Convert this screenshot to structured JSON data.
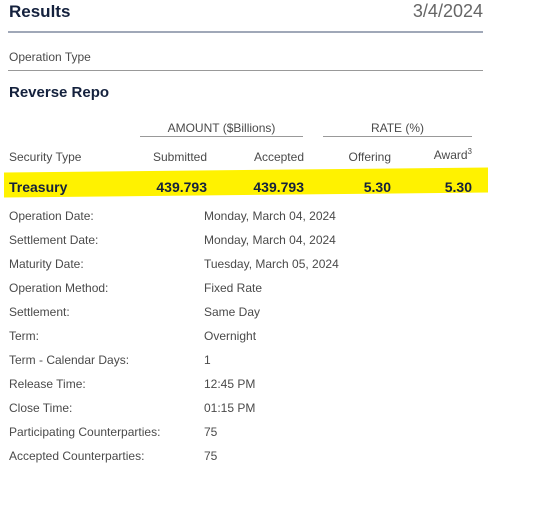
{
  "header": {
    "title": "Results",
    "date": "3/4/2024"
  },
  "operation_type_label": "Operation Type",
  "section_title": "Reverse Repo",
  "table": {
    "groups": [
      "AMOUNT ($Billions)",
      "RATE (%)"
    ],
    "columns": [
      {
        "label": "Security Type"
      },
      {
        "label": "Submitted"
      },
      {
        "label": "Accepted"
      },
      {
        "label": "Offering"
      },
      {
        "label": "Award",
        "note": "3"
      }
    ],
    "rows": [
      [
        "Treasury",
        "439.793",
        "439.793",
        "5.30",
        "5.30"
      ]
    ]
  },
  "details": [
    [
      "Operation Date:",
      "Monday, March 04, 2024"
    ],
    [
      "Settlement Date:",
      "Monday, March 04, 2024"
    ],
    [
      "Maturity Date:",
      "Tuesday, March 05, 2024"
    ],
    [
      "Operation Method:",
      "Fixed Rate"
    ],
    [
      "Settlement:",
      "Same Day"
    ],
    [
      "Term:",
      "Overnight"
    ],
    [
      "Term - Calendar Days:",
      "1"
    ],
    [
      "Release Time:",
      "12:45 PM"
    ],
    [
      "Close Time:",
      "01:15 PM"
    ],
    [
      "Participating Counterparties:",
      "75"
    ],
    [
      "Accepted Counterparties:",
      "75"
    ]
  ]
}
